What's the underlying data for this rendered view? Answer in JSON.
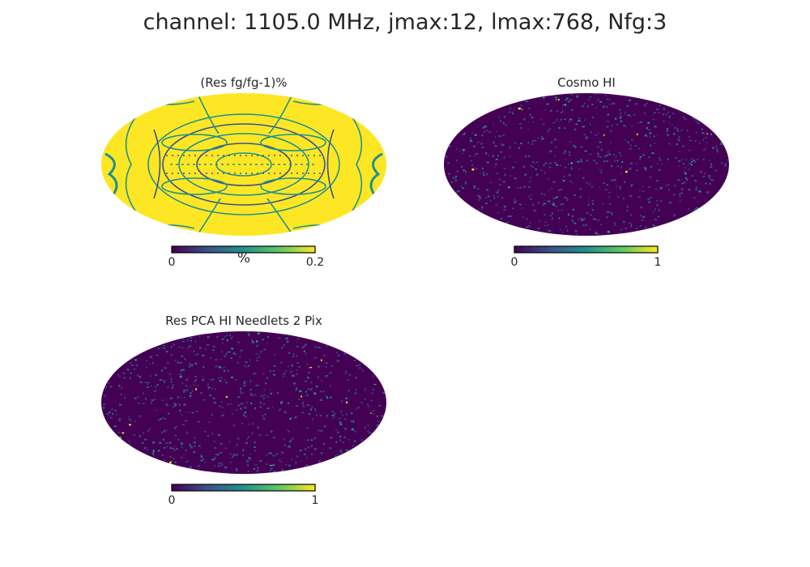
{
  "figure": {
    "suptitle": "channel: 1105.0 MHz, jmax:12, lmax:768, Nfg:3"
  },
  "colors": {
    "viridis": [
      "#440154",
      "#3b528b",
      "#21918c",
      "#5ec962",
      "#fde725"
    ],
    "background": "#ffffff",
    "text": "#262626"
  },
  "chart_data": [
    {
      "type": "heatmap",
      "projection": "mollweide",
      "title": "(Res fg/fg-1)%",
      "colormap": "viridis",
      "colorbar": {
        "min_label": "0",
        "max_label": "0.2",
        "unit": "%",
        "range": [
          0,
          0.2
        ]
      },
      "description_values": "mostly saturated at max (0.2) with low-value contour filaments"
    },
    {
      "type": "heatmap",
      "projection": "mollweide",
      "title": "Cosmo HI",
      "colormap": "viridis",
      "colorbar": {
        "min_label": "0",
        "max_label": "1",
        "unit": "",
        "range": [
          0,
          1
        ]
      }
    },
    {
      "type": "heatmap",
      "projection": "mollweide",
      "title": "Res PCA HI Needlets 2 Pix",
      "colormap": "viridis",
      "colorbar": {
        "min_label": "0",
        "max_label": "1",
        "unit": "",
        "range": [
          0,
          1
        ]
      }
    }
  ]
}
